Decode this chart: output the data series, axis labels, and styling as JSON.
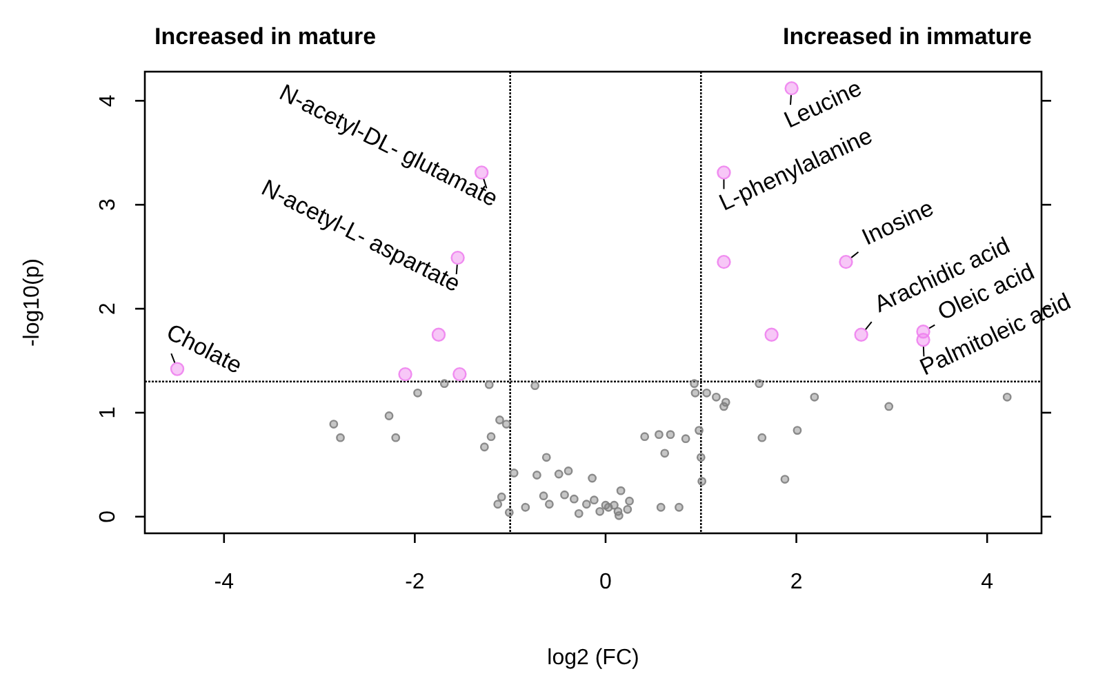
{
  "chart_data": {
    "type": "scatter",
    "xlabel": "log2 (FC)",
    "ylabel": "-log10(p)",
    "xlim": [
      -4.83,
      4.57
    ],
    "ylim": [
      -0.16,
      4.28
    ],
    "xticks": [
      -4,
      -2,
      0,
      2,
      4
    ],
    "yticks": [
      0,
      1,
      2,
      3,
      4
    ],
    "grid": false,
    "marker": "circle",
    "series": [
      {
        "color": "#ee82ee",
        "x": [
          -4.49,
          -2.1,
          -1.53,
          -1.75,
          -1.55,
          -1.3,
          1.95,
          1.24,
          1.24,
          2.52,
          1.74,
          2.68,
          3.33,
          3.33
        ],
        "values": [
          1.42,
          1.37,
          1.37,
          1.75,
          2.49,
          3.31,
          4.12,
          3.31,
          2.45,
          2.45,
          1.75,
          1.75,
          1.78,
          1.7
        ]
      },
      {
        "color": "#808080",
        "x": [
          -1.97,
          -1.69,
          -1.22,
          -2.27,
          -2.85,
          -2.78,
          -2.2,
          -1.11,
          -1.04,
          -1.2,
          -1.27,
          -0.96,
          -1.09,
          -1.13,
          -1.01,
          -0.74,
          -0.84,
          -0.62,
          -0.72,
          -0.49,
          -0.39,
          -0.65,
          -0.59,
          -0.43,
          -0.33,
          -0.28,
          -0.14,
          -0.2,
          -0.12,
          -0.06,
          0.0,
          0.03,
          0.09,
          0.13,
          0.14,
          0.23,
          0.25,
          0.16,
          0.41,
          0.56,
          0.68,
          0.62,
          0.84,
          0.58,
          0.77,
          0.98,
          1.0,
          1.01,
          0.93,
          0.94,
          1.06,
          1.16,
          1.26,
          1.24,
          1.61,
          2.19,
          2.97,
          4.21,
          1.64,
          2.01,
          1.88
        ],
        "values": [
          1.19,
          1.28,
          1.27,
          0.97,
          0.89,
          0.76,
          0.76,
          0.93,
          0.89,
          0.77,
          0.67,
          0.42,
          0.19,
          0.12,
          0.04,
          1.26,
          0.09,
          0.57,
          0.4,
          0.41,
          0.44,
          0.2,
          0.12,
          0.21,
          0.17,
          0.03,
          0.37,
          0.12,
          0.16,
          0.05,
          0.11,
          0.09,
          0.11,
          0.05,
          0.01,
          0.07,
          0.15,
          0.25,
          0.77,
          0.79,
          0.79,
          0.61,
          0.75,
          0.09,
          0.09,
          0.83,
          0.57,
          0.34,
          1.28,
          1.19,
          1.19,
          1.15,
          1.1,
          1.06,
          1.28,
          1.15,
          1.06,
          1.15,
          0.76,
          0.83,
          0.36
        ]
      }
    ],
    "ref_lines": [
      {
        "axis": "x",
        "value": -1,
        "line_style": "dotted",
        "color": "#000000"
      },
      {
        "axis": "x",
        "value": 1,
        "line_style": "dotted",
        "color": "#000000"
      },
      {
        "axis": "y",
        "value": 1.3,
        "line_style": "dotted",
        "color": "#000000"
      }
    ],
    "annotations": [
      "Increased in mature",
      "Increased in immature",
      {
        "text": "N-acetyl-DL- glutamate",
        "x": -1.3,
        "y": 3.31
      },
      {
        "text": "N-acetyl-L- aspartate",
        "x": -1.55,
        "y": 2.49
      },
      {
        "text": "Cholate",
        "x": -4.49,
        "y": 1.42
      },
      {
        "text": "Leucine",
        "x": 1.95,
        "y": 4.12
      },
      {
        "text": "L-phenylalanine",
        "x": 1.24,
        "y": 3.31
      },
      {
        "text": "Inosine",
        "x": 2.52,
        "y": 2.45
      },
      {
        "text": "Arachidic acid",
        "x": 2.68,
        "y": 1.75
      },
      {
        "text": "Oleic acid",
        "x": 3.33,
        "y": 1.78
      },
      {
        "text": "Palmitoleic acid",
        "x": 3.33,
        "y": 1.7
      }
    ]
  }
}
